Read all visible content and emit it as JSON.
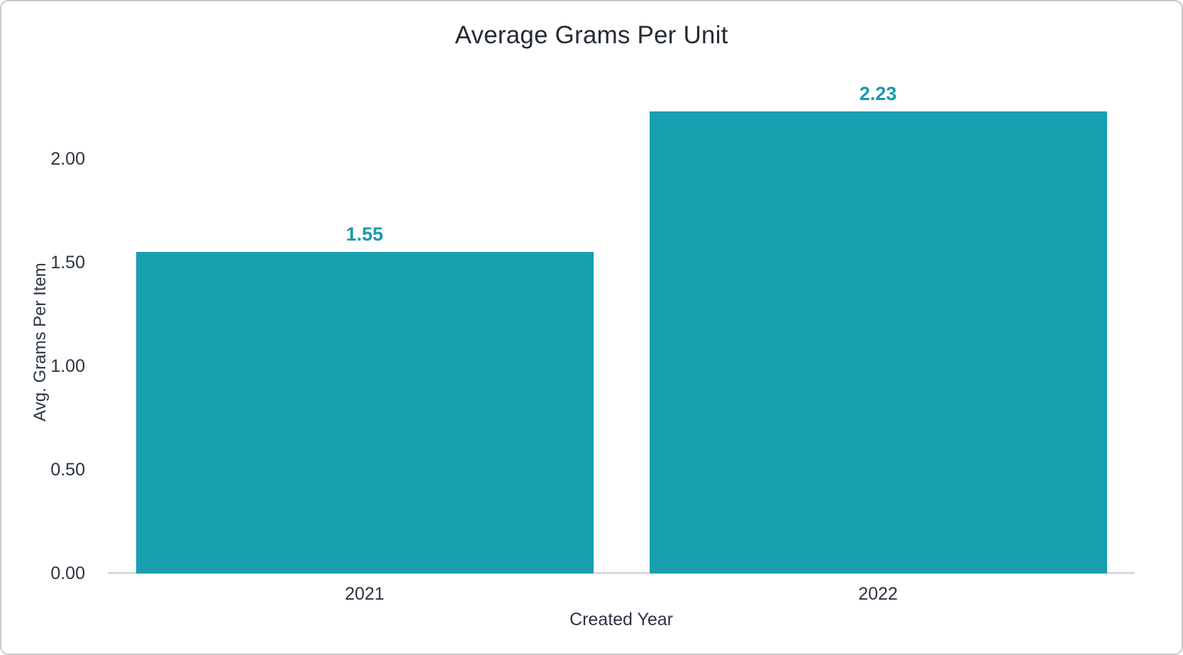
{
  "chart_data": {
    "type": "bar",
    "title": "Average Grams Per Unit",
    "xlabel": "Created Year",
    "ylabel": "Avg. Grams Per Item",
    "categories": [
      "2021",
      "2022"
    ],
    "values": [
      1.55,
      2.23
    ],
    "value_labels": [
      "1.55",
      "2.23"
    ],
    "y_ticks": [
      {
        "label": "0.00",
        "value": 0.0
      },
      {
        "label": "0.50",
        "value": 0.5
      },
      {
        "label": "1.00",
        "value": 1.0
      },
      {
        "label": "1.50",
        "value": 1.5
      },
      {
        "label": "2.00",
        "value": 2.0
      }
    ],
    "ylim": [
      0,
      2.4
    ],
    "grid": "off",
    "legend": "none",
    "colors": {
      "bar": "#189FB0",
      "value_label": "#1899AC",
      "axis_line": "#D6D9E1",
      "text": "#2B3442",
      "title": "#262C36"
    }
  }
}
